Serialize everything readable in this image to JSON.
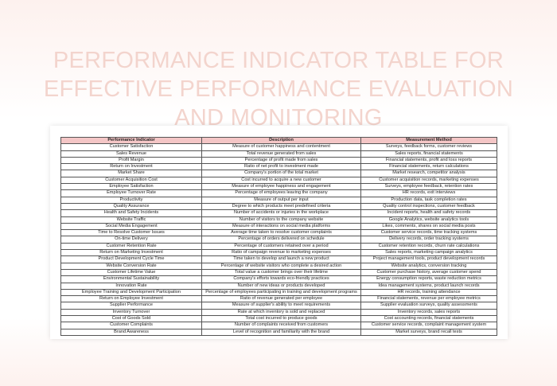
{
  "header": {
    "title": "PERFORMANCE INDICATOR TABLE FOR EFFECTIVE PERFORMANCE EVALUATION AND MONITORING"
  },
  "table": {
    "columns": [
      "Performance Indicator",
      "Description",
      "Measurement Method"
    ],
    "rows": [
      [
        "Customer Satisfaction",
        "Measure of customer happiness and contentment",
        "Surveys, feedback forms, customer reviews"
      ],
      [
        "Sales Revenue",
        "Total revenue generated from sales",
        "Sales reports, financial statements"
      ],
      [
        "Profit Margin",
        "Percentage of profit made from sales",
        "Financial statements, profit and loss reports"
      ],
      [
        "Return on Investment",
        "Ratio of net profit to investment made",
        "Financial statements, return calculations"
      ],
      [
        "Market Share",
        "Company's portion of the total market",
        "Market research, competitor analysis"
      ],
      [
        "Customer Acquisition Cost",
        "Cost incurred to acquire a new customer",
        "Customer acquisition records, marketing expenses"
      ],
      [
        "Employee Satisfaction",
        "Measure of employee happiness and engagement",
        "Surveys, employee feedback, retention rates"
      ],
      [
        "Employee Turnover Rate",
        "Percentage of employees leaving the company",
        "HR records, exit interviews"
      ],
      [
        "Productivity",
        "Measure of output per input",
        "Production data, task completion rates"
      ],
      [
        "Quality Assurance",
        "Degree to which products meet predefined criteria",
        "Quality control inspections, customer feedback"
      ],
      [
        "Health and Safety Incidents",
        "Number of accidents or injuries in the workplace",
        "Incident reports, health and safety records"
      ],
      [
        "Website Traffic",
        "Number of visitors to the company website",
        "Google Analytics, website analytics tools"
      ],
      [
        "Social Media Engagement",
        "Measure of interactions on social media platforms",
        "Likes, comments, shares on social media posts"
      ],
      [
        "Time to Resolve Customer Issues",
        "Average time taken to resolve customer complaints",
        "Customer service records, time tracking systems"
      ],
      [
        "On-time Delivery",
        "Percentage of orders delivered on schedule",
        "Delivery records, order tracking systems"
      ],
      [
        "Customer Retention Rate",
        "Percentage of customers retained over a period",
        "Customer retention records, churn rate calculations"
      ],
      [
        "Return on Marketing Investment",
        "Ratio of campaign revenue to marketing expenses",
        "Sales reports, marketing campaign analytics"
      ],
      [
        "Product Development Cycle Time",
        "Time taken to develop and launch a new product",
        "Project management tools, product development records"
      ],
      [
        "Website Conversion Rate",
        "Percentage of website visitors who complete a desired action",
        "Website analytics, conversion tracking"
      ],
      [
        "Customer Lifetime Value",
        "Total value a customer brings over their lifetime",
        "Customer purchase history, average customer spend"
      ],
      [
        "Environmental Sustainability",
        "Company's efforts towards eco-friendly practices",
        "Energy consumption reports, waste reduction metrics"
      ],
      [
        "Innovation Rate",
        "Number of new ideas or products developed",
        "Idea management systems, product launch records"
      ],
      [
        "Employee Training and Development Participation",
        "Percentage of employees participating in training and development programs",
        "HR records, training attendance"
      ],
      [
        "Return on Employee Investment",
        "Ratio of revenue generated per employee",
        "Financial statements, revenue per employee metrics"
      ],
      [
        "Supplier Performance",
        "Measure of supplier's ability to meet requirements",
        "Supplier evaluation surveys, quality assessments"
      ],
      [
        "Inventory Turnover",
        "Rate at which inventory is sold and replaced",
        "Inventory records, sales reports"
      ],
      [
        "Cost of Goods Sold",
        "Total cost incurred to produce goods",
        "Cost accounting records, financial statements"
      ],
      [
        "Customer Complaints",
        "Number of complaints received from customers",
        "Customer service records, complaint management system"
      ],
      [
        "Brand Awareness",
        "Level of recognition and familiarity with the brand",
        "Market surveys, brand recall tests"
      ]
    ]
  }
}
